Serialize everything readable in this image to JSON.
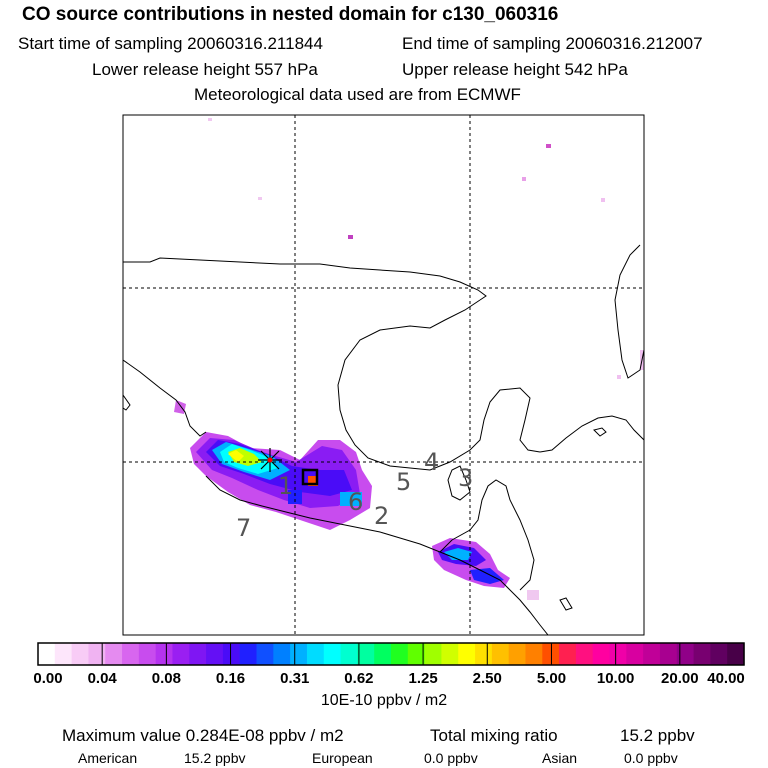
{
  "header": {
    "title": "CO  source contributions in nested domain for c130_060316",
    "line1_start": "Start time of sampling 20060316.211844",
    "line1_end": "End time of sampling 20060316.212007",
    "line2_lower": "Lower release height  557 hPa",
    "line2_upper": "Upper release height  542 hPa",
    "line3": "Meteorological data used are from ECMWF"
  },
  "map": {
    "track_labels": [
      "1",
      "2",
      "3",
      "4",
      "5",
      "6",
      "7"
    ],
    "release_marker": "star-icon",
    "box_marker": "square-icon"
  },
  "colorbar": {
    "tick_labels": [
      "0.00",
      "0.04",
      "0.08",
      "0.16",
      "0.31",
      "0.62",
      "1.25",
      "2.50",
      "5.00",
      "10.00",
      "20.00",
      "40.00"
    ],
    "colors": [
      "#ffffff",
      "#fde6fb",
      "#f8ccf6",
      "#f0b3f2",
      "#e58bf0",
      "#d866ef",
      "#c84cee",
      "#b533ef",
      "#9a1ff2",
      "#7f16f3",
      "#6410f5",
      "#4a0cf7",
      "#2020ff",
      "#1050ff",
      "#0080ff",
      "#00b0ff",
      "#00dcff",
      "#00ffff",
      "#00ffd0",
      "#00ffa0",
      "#00ff60",
      "#20ff20",
      "#60ff00",
      "#a0ff00",
      "#d0ff00",
      "#ffff00",
      "#ffe000",
      "#ffc000",
      "#ffa000",
      "#ff8000",
      "#ff5000",
      "#ff2050",
      "#ff1080",
      "#ff00a0",
      "#f000a8",
      "#d800a0",
      "#c00098",
      "#a80090",
      "#900088",
      "#780070",
      "#600060",
      "#480048"
    ],
    "units": "10E-10 ppbv / m2"
  },
  "stats": {
    "maximum": "Maximum value  0.284E-08 ppbv / m2",
    "total_label": "Total mixing ratio",
    "total_value": "15.2 ppbv",
    "american_label": "American",
    "american_value": "15.2 ppbv",
    "european_label": "European",
    "european_value": "0.0 ppbv",
    "asian_label": "Asian",
    "asian_value": "0.0 ppbv"
  }
}
